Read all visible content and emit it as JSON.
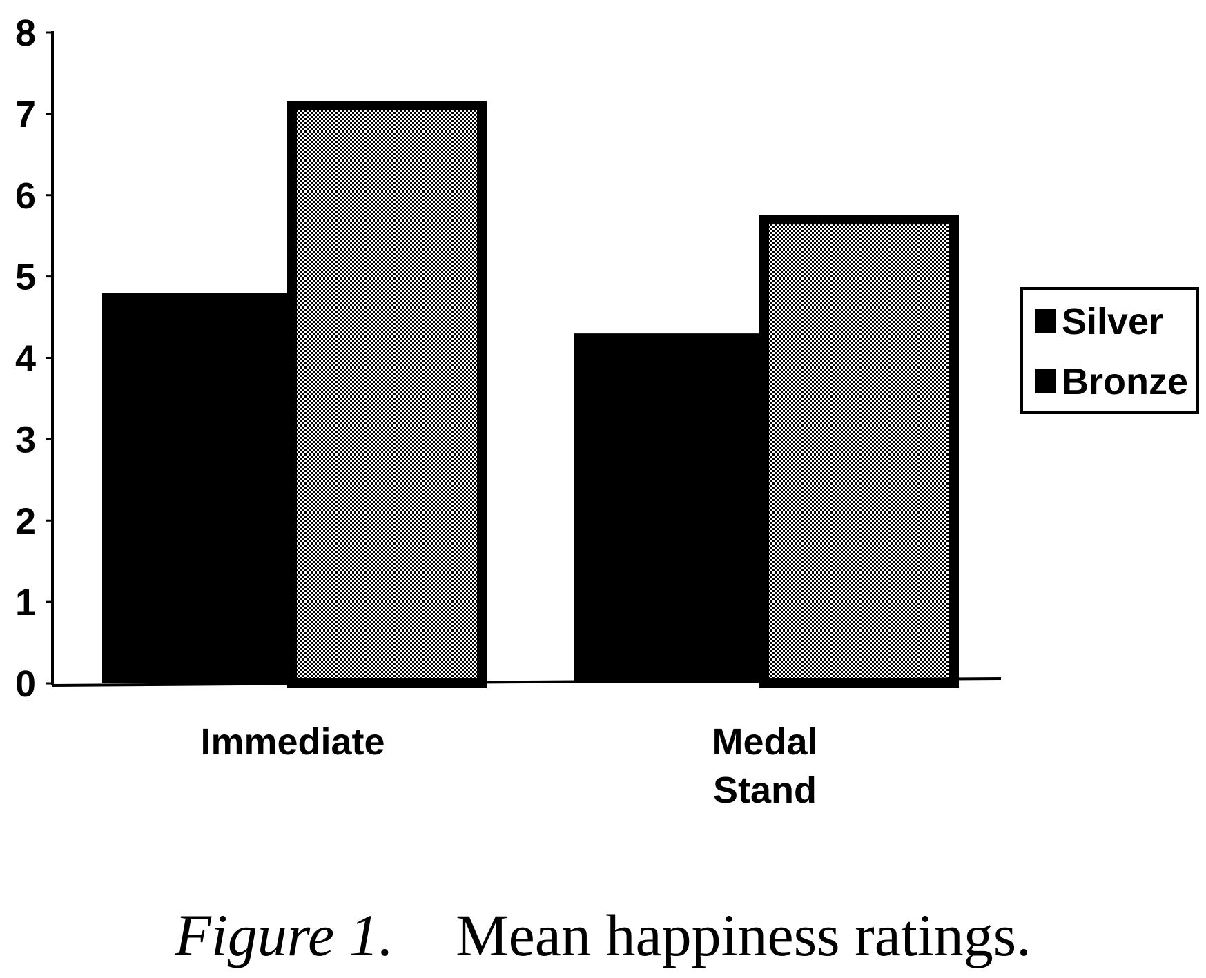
{
  "chart_data": {
    "type": "bar",
    "categories": [
      [
        "Immediate"
      ],
      [
        "Medal",
        "Stand"
      ]
    ],
    "series": [
      {
        "name": "Silver",
        "values": [
          4.8,
          4.3
        ]
      },
      {
        "name": "Bronze",
        "values": [
          7.1,
          5.7
        ]
      }
    ],
    "ylim": [
      0,
      8
    ],
    "yticks": [
      "0",
      "1",
      "2",
      "3",
      "4",
      "5",
      "6",
      "7",
      "8"
    ],
    "legend_position": "right",
    "series_styles": [
      {
        "fill": "#000000",
        "pattern": "solid"
      },
      {
        "fill": "#cfcfcf",
        "pattern": "checker"
      }
    ]
  },
  "caption": {
    "figure_label": "Figure 1.",
    "text": "Mean happiness ratings."
  }
}
